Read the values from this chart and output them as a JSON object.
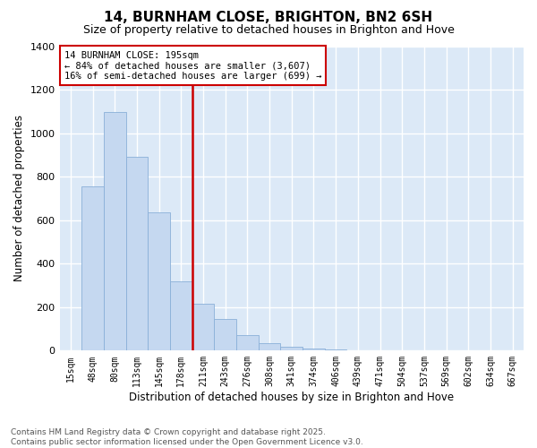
{
  "title": "14, BURNHAM CLOSE, BRIGHTON, BN2 6SH",
  "subtitle": "Size of property relative to detached houses in Brighton and Hove",
  "xlabel": "Distribution of detached houses by size in Brighton and Hove",
  "ylabel": "Number of detached properties",
  "ann1": "14 BURNHAM CLOSE: 195sqm",
  "ann2": "← 84% of detached houses are smaller (3,607)",
  "ann3": "16% of semi-detached houses are larger (699) →",
  "footer1": "Contains HM Land Registry data © Crown copyright and database right 2025.",
  "footer2": "Contains public sector information licensed under the Open Government Licence v3.0.",
  "bar_color": "#c5d8f0",
  "bar_edge_color": "#8ab0d8",
  "vline_color": "#cc0000",
  "ann_box_edge": "#cc0000",
  "bg_color": "#dce9f7",
  "grid_color": "#ffffff",
  "categories": [
    "15sqm",
    "48sqm",
    "80sqm",
    "113sqm",
    "145sqm",
    "178sqm",
    "211sqm",
    "243sqm",
    "276sqm",
    "308sqm",
    "341sqm",
    "374sqm",
    "406sqm",
    "439sqm",
    "471sqm",
    "504sqm",
    "537sqm",
    "569sqm",
    "602sqm",
    "634sqm",
    "667sqm"
  ],
  "values": [
    2,
    757,
    1097,
    890,
    635,
    320,
    215,
    145,
    73,
    35,
    18,
    8,
    5,
    3,
    2,
    1,
    1,
    0,
    0,
    0,
    0
  ],
  "vline_x": 5.5,
  "ylim": [
    0,
    1400
  ],
  "yticks": [
    0,
    200,
    400,
    600,
    800,
    1000,
    1200,
    1400
  ]
}
